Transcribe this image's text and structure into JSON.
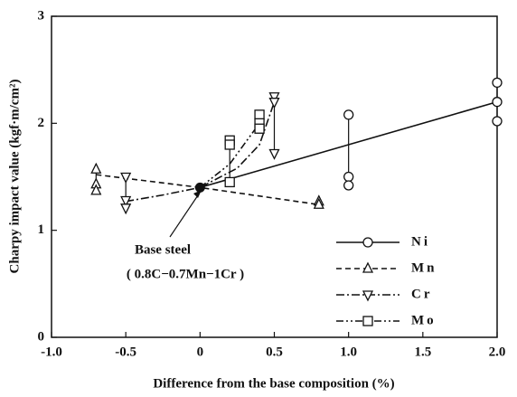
{
  "chart_data": {
    "type": "line",
    "ylabel": "Charpy impact value (kgf·m/cm²)",
    "xlabel": "Difference from the base composition (%)",
    "xlim": [
      -1.0,
      2.0
    ],
    "xticks": [
      {
        "value": -1.0,
        "label": "-1.0"
      },
      -0.5,
      0,
      0.5,
      {
        "value": 1.0,
        "label": "1.0"
      },
      1.5,
      {
        "value": 2.0,
        "label": "2.0"
      }
    ],
    "ylim": [
      0,
      3
    ],
    "yticks": [
      0,
      1,
      2,
      3
    ],
    "legend": "lower right",
    "color": "#111111",
    "base_point": {
      "label": "Base steel",
      "sublabel": "( 0.8C−0.7Mn−1Cr )",
      "x": 0,
      "y": 1.4
    },
    "series": [
      {
        "name": "Ni",
        "marker": "circle",
        "dash": "solid",
        "x": [
          1.0,
          1.0,
          1.0,
          2.0,
          2.0,
          2.0
        ],
        "values": [
          2.08,
          1.5,
          1.42,
          2.38,
          2.2,
          2.02
        ],
        "fit_x": [
          0,
          2.0
        ],
        "fit_values": [
          1.4,
          2.2
        ]
      },
      {
        "name": "Mn",
        "marker": "triangle-up",
        "dash": "dashed",
        "x": [
          -0.7,
          -0.7,
          -0.7,
          0.8,
          0.8
        ],
        "values": [
          1.57,
          1.43,
          1.37,
          1.27,
          1.24
        ],
        "fit_x": [
          -0.7,
          0,
          0.8
        ],
        "fit_values": [
          1.52,
          1.4,
          1.24
        ]
      },
      {
        "name": "Cr",
        "marker": "triangle-down",
        "dash": "dashdot",
        "x": [
          -0.5,
          -0.5,
          -0.5,
          0.5,
          0.5,
          0.5
        ],
        "values": [
          1.5,
          1.28,
          1.21,
          2.25,
          2.2,
          1.72
        ],
        "fit_x": [
          -0.5,
          -0.25,
          0,
          0.25,
          0.4,
          0.5
        ],
        "fit_values": [
          1.27,
          1.33,
          1.4,
          1.58,
          1.8,
          2.2
        ]
      },
      {
        "name": "Mo",
        "marker": "square",
        "dash": "dashdotdot",
        "x": [
          0.2,
          0.2,
          0.2,
          0.4,
          0.4,
          0.4
        ],
        "values": [
          1.84,
          1.8,
          1.45,
          2.08,
          2.0,
          1.95
        ],
        "fit_x": [
          0,
          0.2,
          0.4
        ],
        "fit_values": [
          1.4,
          1.62,
          2.0
        ]
      }
    ]
  }
}
